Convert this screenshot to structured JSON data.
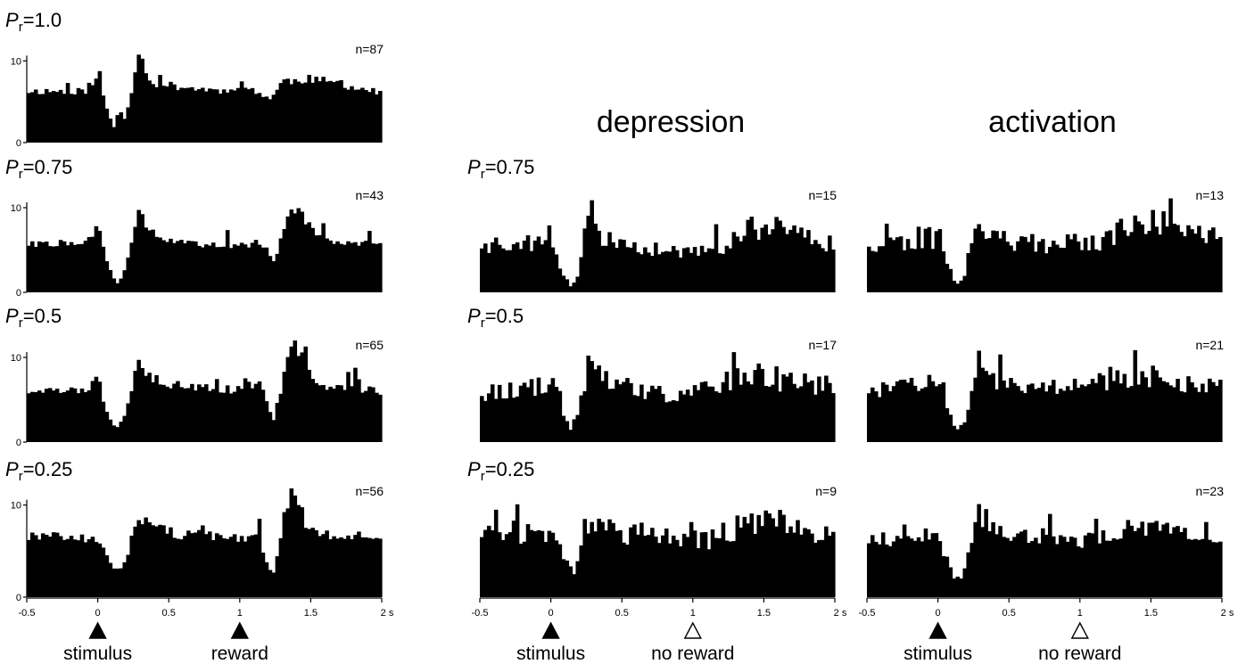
{
  "headers": {
    "depression": "depression",
    "activation": "activation"
  },
  "colors": {
    "bars": "#000000",
    "axis": "#000000"
  },
  "chart_data": [
    {
      "id": "rew-1.0",
      "type": "bar",
      "pr_prefix": "P",
      "pr_sub": "r",
      "pr_value": "=1.0",
      "n": "n=87",
      "yticks": [
        "0",
        "10"
      ],
      "ylim": [
        0,
        12
      ],
      "xlim": [
        -0.5,
        2.0
      ],
      "profile": [
        [
          -0.5,
          6.3
        ],
        [
          -0.1,
          6.3
        ],
        [
          -0.02,
          6.8
        ],
        [
          0.0,
          10.2
        ],
        [
          0.03,
          6.0
        ],
        [
          0.08,
          3.2
        ],
        [
          0.13,
          1.3
        ],
        [
          0.18,
          2.5
        ],
        [
          0.23,
          5.5
        ],
        [
          0.26,
          9.0
        ],
        [
          0.29,
          11.3
        ],
        [
          0.32,
          9.5
        ],
        [
          0.38,
          7.3
        ],
        [
          0.5,
          7.0
        ],
        [
          0.7,
          6.6
        ],
        [
          0.9,
          6.3
        ],
        [
          1.0,
          7.2
        ],
        [
          1.05,
          6.7
        ],
        [
          1.15,
          6.0
        ],
        [
          1.22,
          5.3
        ],
        [
          1.3,
          7.5
        ],
        [
          1.5,
          7.8
        ],
        [
          1.7,
          7.2
        ],
        [
          2.0,
          6.0
        ]
      ]
    },
    {
      "id": "rew-0.75",
      "type": "bar",
      "pr_prefix": "P",
      "pr_sub": "r",
      "pr_value": "=0.75",
      "n": "n=43",
      "yticks": [
        "0",
        "10"
      ],
      "ylim": [
        0,
        12
      ],
      "xlim": [
        -0.5,
        2.0
      ],
      "profile": [
        [
          -0.5,
          5.7
        ],
        [
          -0.1,
          5.9
        ],
        [
          -0.02,
          6.8
        ],
        [
          0.0,
          8.8
        ],
        [
          0.03,
          5.5
        ],
        [
          0.08,
          2.8
        ],
        [
          0.13,
          0.9
        ],
        [
          0.18,
          2.2
        ],
        [
          0.23,
          5.0
        ],
        [
          0.27,
          8.5
        ],
        [
          0.29,
          10.5
        ],
        [
          0.33,
          8.0
        ],
        [
          0.45,
          6.5
        ],
        [
          0.6,
          5.8
        ],
        [
          0.8,
          5.4
        ],
        [
          0.95,
          5.6
        ],
        [
          1.05,
          5.4
        ],
        [
          1.12,
          6.2
        ],
        [
          1.18,
          5.0
        ],
        [
          1.24,
          3.6
        ],
        [
          1.3,
          7.0
        ],
        [
          1.36,
          9.2
        ],
        [
          1.42,
          10.0
        ],
        [
          1.48,
          8.0
        ],
        [
          1.6,
          6.2
        ],
        [
          2.0,
          5.6
        ]
      ]
    },
    {
      "id": "rew-0.5",
      "type": "bar",
      "pr_prefix": "P",
      "pr_sub": "r",
      "pr_value": "=0.5",
      "n": "n=65",
      "yticks": [
        "0",
        "10"
      ],
      "ylim": [
        0,
        12
      ],
      "xlim": [
        -0.5,
        2.0
      ],
      "profile": [
        [
          -0.5,
          6.0
        ],
        [
          -0.1,
          6.1
        ],
        [
          -0.02,
          7.0
        ],
        [
          0.0,
          8.5
        ],
        [
          0.03,
          5.5
        ],
        [
          0.08,
          3.0
        ],
        [
          0.13,
          1.6
        ],
        [
          0.18,
          2.8
        ],
        [
          0.23,
          5.8
        ],
        [
          0.27,
          9.0
        ],
        [
          0.29,
          10.5
        ],
        [
          0.33,
          8.2
        ],
        [
          0.45,
          7.0
        ],
        [
          0.7,
          6.5
        ],
        [
          0.95,
          6.2
        ],
        [
          1.1,
          6.8
        ],
        [
          1.14,
          7.8
        ],
        [
          1.18,
          5.5
        ],
        [
          1.23,
          2.2
        ],
        [
          1.28,
          5.5
        ],
        [
          1.33,
          9.0
        ],
        [
          1.38,
          11.8
        ],
        [
          1.43,
          10.5
        ],
        [
          1.5,
          8.0
        ],
        [
          1.6,
          6.6
        ],
        [
          2.0,
          6.0
        ]
      ]
    },
    {
      "id": "rew-0.25",
      "type": "bar",
      "pr_prefix": "P",
      "pr_sub": "r",
      "pr_value": "=0.25",
      "n": "n=56",
      "yticks": [
        "0",
        "10"
      ],
      "ylim": [
        0,
        12
      ],
      "xlim": [
        -0.5,
        2.0
      ],
      "profile": [
        [
          -0.5,
          6.5
        ],
        [
          -0.1,
          6.4
        ],
        [
          -0.03,
          6.8
        ],
        [
          0.0,
          6.4
        ],
        [
          0.05,
          5.3
        ],
        [
          0.1,
          3.6
        ],
        [
          0.15,
          2.6
        ],
        [
          0.2,
          4.0
        ],
        [
          0.25,
          7.0
        ],
        [
          0.28,
          8.8
        ],
        [
          0.32,
          8.2
        ],
        [
          0.5,
          7.0
        ],
        [
          0.8,
          6.6
        ],
        [
          1.0,
          6.2
        ],
        [
          1.1,
          6.5
        ],
        [
          1.15,
          5.5
        ],
        [
          1.2,
          3.0
        ],
        [
          1.24,
          2.5
        ],
        [
          1.28,
          5.5
        ],
        [
          1.33,
          9.5
        ],
        [
          1.37,
          12.5
        ],
        [
          1.41,
          10.5
        ],
        [
          1.47,
          7.5
        ],
        [
          1.6,
          6.8
        ],
        [
          2.0,
          6.6
        ]
      ]
    },
    {
      "id": "dep-0.75",
      "type": "bar",
      "pr_prefix": "P",
      "pr_sub": "r",
      "pr_value": "=0.75",
      "n": "n=15",
      "ylim": [
        0,
        12
      ],
      "xlim": [
        -0.5,
        2.0
      ],
      "profile": [
        [
          -0.5,
          5.8
        ],
        [
          -0.05,
          6.0
        ],
        [
          0.0,
          8.0
        ],
        [
          0.03,
          5.0
        ],
        [
          0.08,
          2.5
        ],
        [
          0.13,
          0.6
        ],
        [
          0.18,
          1.5
        ],
        [
          0.23,
          5.5
        ],
        [
          0.27,
          9.5
        ],
        [
          0.3,
          8.5
        ],
        [
          0.4,
          6.0
        ],
        [
          0.6,
          5.0
        ],
        [
          0.9,
          4.8
        ],
        [
          1.1,
          4.5
        ],
        [
          1.3,
          6.5
        ],
        [
          1.5,
          8.0
        ],
        [
          1.7,
          6.5
        ],
        [
          2.0,
          6.0
        ]
      ]
    },
    {
      "id": "dep-0.5",
      "type": "bar",
      "pr_prefix": "P",
      "pr_sub": "r",
      "pr_value": "=0.5",
      "n": "n=17",
      "ylim": [
        0,
        12
      ],
      "xlim": [
        -0.5,
        2.0
      ],
      "profile": [
        [
          -0.5,
          6.0
        ],
        [
          -0.05,
          6.5
        ],
        [
          0.0,
          7.8
        ],
        [
          0.05,
          6.0
        ],
        [
          0.1,
          2.5
        ],
        [
          0.14,
          1.2
        ],
        [
          0.19,
          3.0
        ],
        [
          0.24,
          7.5
        ],
        [
          0.27,
          10.0
        ],
        [
          0.3,
          8.0
        ],
        [
          0.45,
          6.8
        ],
        [
          0.7,
          5.8
        ],
        [
          0.9,
          5.5
        ],
        [
          1.1,
          6.2
        ],
        [
          1.3,
          7.8
        ],
        [
          1.5,
          8.0
        ],
        [
          1.7,
          7.0
        ],
        [
          2.0,
          6.8
        ]
      ]
    },
    {
      "id": "dep-0.25",
      "type": "bar",
      "pr_prefix": "P",
      "pr_sub": "r",
      "pr_value": "=0.25",
      "n": "n=9",
      "ylim": [
        0,
        12
      ],
      "xlim": [
        -0.5,
        2.0
      ],
      "profile": [
        [
          -0.5,
          7.2
        ],
        [
          -0.05,
          7.0
        ],
        [
          0.0,
          6.8
        ],
        [
          0.08,
          5.0
        ],
        [
          0.12,
          3.0
        ],
        [
          0.18,
          3.0
        ],
        [
          0.23,
          6.8
        ],
        [
          0.27,
          8.5
        ],
        [
          0.35,
          7.5
        ],
        [
          0.6,
          6.8
        ],
        [
          0.9,
          6.5
        ],
        [
          1.1,
          6.2
        ],
        [
          1.3,
          7.5
        ],
        [
          1.5,
          8.6
        ],
        [
          1.7,
          7.5
        ],
        [
          2.0,
          7.0
        ]
      ]
    },
    {
      "id": "act-0.75",
      "type": "bar",
      "n": "n=13",
      "ylim": [
        0,
        12
      ],
      "xlim": [
        -0.5,
        2.0
      ],
      "profile": [
        [
          -0.5,
          6.0
        ],
        [
          -0.1,
          6.2
        ],
        [
          -0.02,
          6.5
        ],
        [
          0.0,
          7.0
        ],
        [
          0.05,
          5.0
        ],
        [
          0.1,
          2.0
        ],
        [
          0.15,
          0.8
        ],
        [
          0.2,
          2.5
        ],
        [
          0.24,
          7.0
        ],
        [
          0.28,
          9.5
        ],
        [
          0.31,
          8.0
        ],
        [
          0.4,
          6.2
        ],
        [
          0.6,
          5.8
        ],
        [
          0.9,
          5.6
        ],
        [
          1.1,
          6.0
        ],
        [
          1.3,
          7.2
        ],
        [
          1.5,
          8.5
        ],
        [
          1.7,
          7.5
        ],
        [
          2.0,
          6.8
        ]
      ]
    },
    {
      "id": "act-0.5",
      "type": "bar",
      "n": "n=21",
      "ylim": [
        0,
        12
      ],
      "xlim": [
        -0.5,
        2.0
      ],
      "profile": [
        [
          -0.5,
          6.2
        ],
        [
          -0.1,
          6.6
        ],
        [
          -0.02,
          7.2
        ],
        [
          0.0,
          8.4
        ],
        [
          0.05,
          5.5
        ],
        [
          0.1,
          2.0
        ],
        [
          0.15,
          1.5
        ],
        [
          0.2,
          2.8
        ],
        [
          0.25,
          7.5
        ],
        [
          0.28,
          10.0
        ],
        [
          0.31,
          9.0
        ],
        [
          0.4,
          7.0
        ],
        [
          0.6,
          6.6
        ],
        [
          0.9,
          6.4
        ],
        [
          1.1,
          7.0
        ],
        [
          1.3,
          7.6
        ],
        [
          1.5,
          7.4
        ],
        [
          1.7,
          7.0
        ],
        [
          2.0,
          6.8
        ]
      ]
    },
    {
      "id": "act-0.25",
      "type": "bar",
      "n": "n=23",
      "ylim": [
        0,
        12
      ],
      "xlim": [
        -0.5,
        2.0
      ],
      "profile": [
        [
          -0.5,
          6.2
        ],
        [
          -0.1,
          6.4
        ],
        [
          0.0,
          6.4
        ],
        [
          0.06,
          4.2
        ],
        [
          0.11,
          2.0
        ],
        [
          0.15,
          1.6
        ],
        [
          0.2,
          3.2
        ],
        [
          0.24,
          6.8
        ],
        [
          0.28,
          9.2
        ],
        [
          0.33,
          8.2
        ],
        [
          0.45,
          7.0
        ],
        [
          0.6,
          6.6
        ],
        [
          0.8,
          6.2
        ],
        [
          1.0,
          6.0
        ],
        [
          1.2,
          6.8
        ],
        [
          1.4,
          7.8
        ],
        [
          1.6,
          7.2
        ],
        [
          1.8,
          6.8
        ],
        [
          2.0,
          6.2
        ]
      ]
    }
  ],
  "xaxes": [
    {
      "id": "xaxis-reward",
      "ticks": [
        "-0.5",
        "0",
        "0.5",
        "1",
        "1.5",
        "2 s"
      ],
      "events": [
        {
          "label": "stimulus",
          "at": 0,
          "marker": "filled"
        },
        {
          "label": "reward",
          "at": 1,
          "marker": "filled"
        }
      ]
    },
    {
      "id": "xaxis-depression",
      "ticks": [
        "-0.5",
        "0",
        "0.5",
        "1",
        "1.5",
        "2 s"
      ],
      "events": [
        {
          "label": "stimulus",
          "at": 0,
          "marker": "filled"
        },
        {
          "label": "no reward",
          "at": 1,
          "marker": "open"
        }
      ]
    },
    {
      "id": "xaxis-activation",
      "ticks": [
        "-0.5",
        "0",
        "0.5",
        "1",
        "1.5",
        "2 s"
      ],
      "events": [
        {
          "label": "stimulus",
          "at": 0,
          "marker": "filled"
        },
        {
          "label": "no reward",
          "at": 1,
          "marker": "open"
        }
      ]
    }
  ]
}
